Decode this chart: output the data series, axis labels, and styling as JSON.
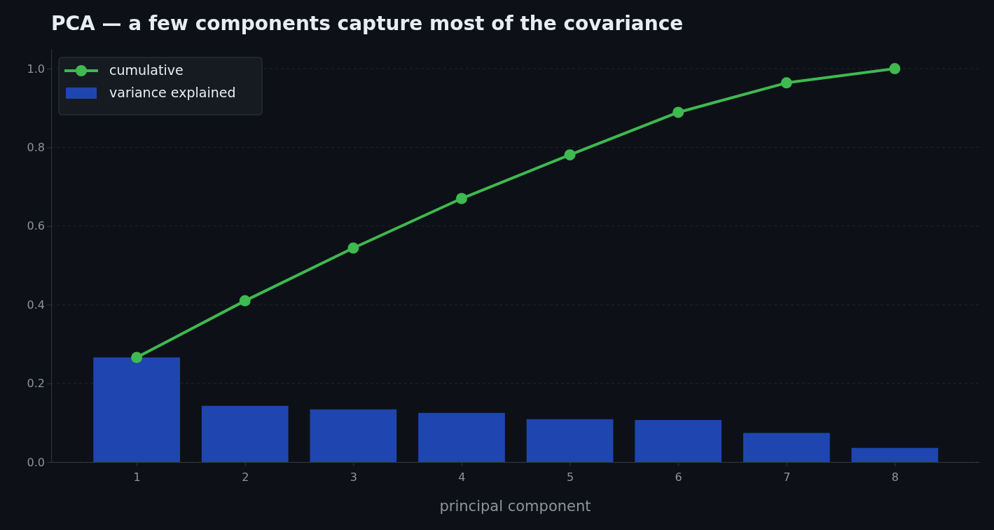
{
  "chart_data": {
    "type": "bar",
    "title": "PCA — a few components capture most of the covariance",
    "xlabel": "principal component",
    "x": [
      1,
      2,
      3,
      4,
      5,
      6,
      7,
      8
    ],
    "series": [
      {
        "name": "variance explained",
        "color": "#1f46b0",
        "values": [
          0.266,
          0.143,
          0.134,
          0.125,
          0.109,
          0.107,
          0.074,
          0.036
        ]
      },
      {
        "name": "cumulative",
        "type": "line",
        "color": "#3fb950",
        "values": [
          0.266,
          0.41,
          0.544,
          0.67,
          0.781,
          0.889,
          0.964,
          1.0
        ]
      }
    ],
    "xlim": [
      0.21,
      8.78
    ],
    "xticks": [
      1,
      2,
      3,
      4,
      5,
      6,
      7,
      8
    ],
    "ylim": [
      0,
      1.05
    ],
    "yticks": [
      {
        "value": 0,
        "label": "0.0"
      },
      {
        "value": 0.2,
        "label": "0.2"
      },
      {
        "value": 0.4,
        "label": "0.4"
      },
      {
        "value": 0.6,
        "label": "0.6"
      },
      {
        "value": 0.8,
        "label": "0.8"
      },
      {
        "value": 1,
        "label": "1.0"
      }
    ],
    "grid": "y",
    "legend": "top left",
    "marker": "circle",
    "line_style": "solid"
  }
}
